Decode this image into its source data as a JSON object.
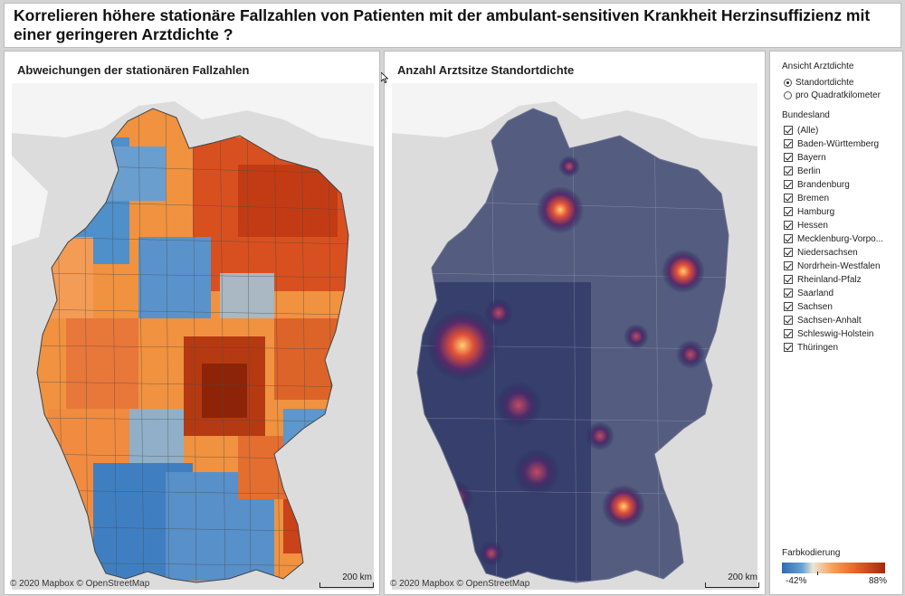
{
  "header": {
    "title": "Korrelieren höhere stationäre Fallzahlen von Patienten mit der ambulant-sensitiven Krankheit Herzinsuffizienz mit einer geringeren Arztdichte ?"
  },
  "map_left": {
    "title": "Abweichungen der stationären Fallzahlen",
    "credit": "© 2020 Mapbox © OpenStreetMap",
    "scale_label": "200 km"
  },
  "map_right": {
    "title": "Anzahl Arztsitze Standortdichte",
    "credit": "© 2020 Mapbox © OpenStreetMap",
    "scale_label": "200 km"
  },
  "sidebar": {
    "view_heading": "Ansicht Arztdichte",
    "view_options": [
      {
        "label": "Standortdichte",
        "selected": true
      },
      {
        "label": "pro Quadratkilometer",
        "selected": false
      }
    ],
    "state_heading": "Bundesland",
    "states": [
      {
        "label": "(Alle)",
        "checked": true
      },
      {
        "label": "Baden-Württemberg",
        "checked": true
      },
      {
        "label": "Bayern",
        "checked": true
      },
      {
        "label": "Berlin",
        "checked": true
      },
      {
        "label": "Brandenburg",
        "checked": true
      },
      {
        "label": "Bremen",
        "checked": true
      },
      {
        "label": "Hamburg",
        "checked": true
      },
      {
        "label": "Hessen",
        "checked": true
      },
      {
        "label": "Mecklenburg-Vorpo...",
        "checked": true
      },
      {
        "label": "Niedersachsen",
        "checked": true
      },
      {
        "label": "Nordrhein-Westfalen",
        "checked": true
      },
      {
        "label": "Rheinland-Pfalz",
        "checked": true
      },
      {
        "label": "Saarland",
        "checked": true
      },
      {
        "label": "Sachsen",
        "checked": true
      },
      {
        "label": "Sachsen-Anhalt",
        "checked": true
      },
      {
        "label": "Schleswig-Holstein",
        "checked": true
      },
      {
        "label": "Thüringen",
        "checked": true
      }
    ],
    "legend": {
      "title": "Farbkodierung",
      "min_label": "-42%",
      "max_label": "88%"
    }
  },
  "colors": {
    "choropleth_low": "#2f6bb0",
    "choropleth_mid": "#e9e6d8",
    "choropleth_high": "#a12a0a",
    "heat_base": "#1f2a5c",
    "heat_hot": "#f0a040",
    "basemap": "#dcdcdc"
  }
}
